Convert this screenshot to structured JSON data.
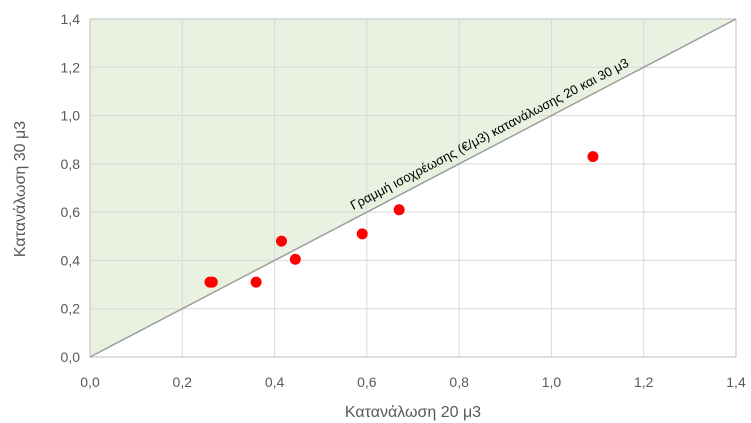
{
  "chart_data": {
    "type": "scatter",
    "title": "",
    "xlabel": "Κατανάλωση  20 μ3",
    "ylabel": "Κατανάλωση  30 μ3",
    "xlim": [
      0,
      1.4
    ],
    "ylim": [
      0,
      1.4
    ],
    "xticks": [
      "0,0",
      "0,2",
      "0,4",
      "0,6",
      "0,8",
      "1,0",
      "1,2",
      "1,4"
    ],
    "yticks": [
      "0,0",
      "0,2",
      "0,4",
      "0,6",
      "0,8",
      "1,0",
      "1,2",
      "1,4"
    ],
    "grid": true,
    "points": [
      {
        "x": 0.26,
        "y": 0.31
      },
      {
        "x": 0.265,
        "y": 0.31
      },
      {
        "x": 0.36,
        "y": 0.31
      },
      {
        "x": 0.415,
        "y": 0.48
      },
      {
        "x": 0.445,
        "y": 0.405
      },
      {
        "x": 0.59,
        "y": 0.51
      },
      {
        "x": 0.67,
        "y": 0.61
      },
      {
        "x": 1.09,
        "y": 0.83
      }
    ],
    "reference_line": {
      "label": "Γραμμή ισοχρέωσης (€/μ3) κατανάλωσης 20 και 30 μ3",
      "from": [
        0,
        0
      ],
      "to": [
        1.4,
        1.4
      ]
    },
    "colors": {
      "points": "#ff0000",
      "shaded_region": "#e9f2e1",
      "reference_line": "#9e9e9e",
      "grid": "#d9d9d9",
      "axis": "#bfbfbf"
    }
  }
}
